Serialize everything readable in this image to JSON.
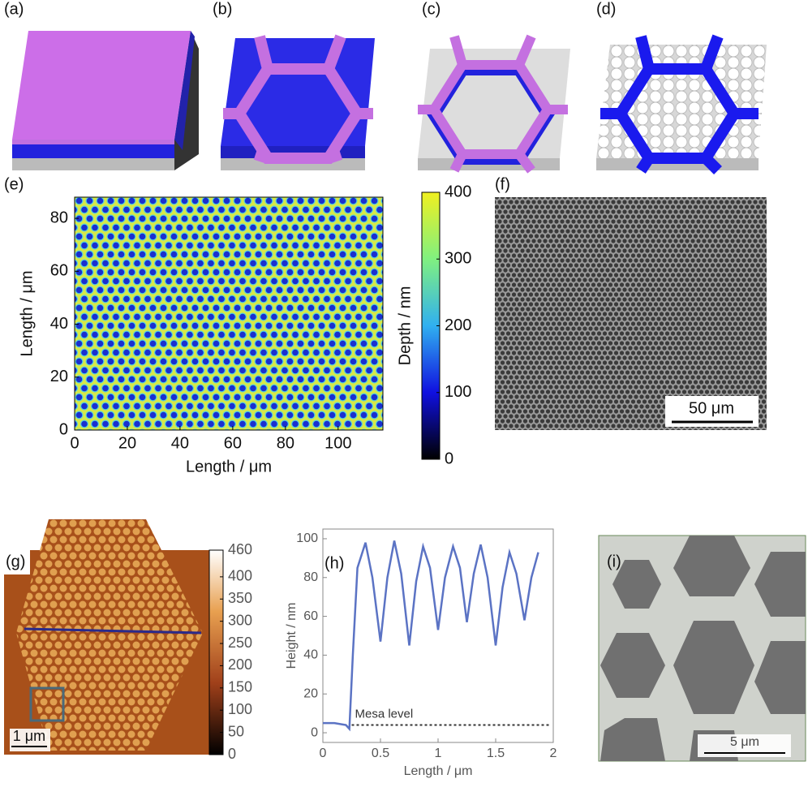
{
  "panel_labels": {
    "a": "(a)",
    "b": "(b)",
    "c": "(c)",
    "d": "(d)",
    "e": "(e)",
    "f": "(f)",
    "g": "(g)",
    "h": "(h)",
    "i": "(i)"
  },
  "scale_bars": {
    "f": "50 μm",
    "g": "1 μm",
    "i": "5 μm"
  },
  "chart_data": [
    {
      "type": "heatmap",
      "xlabel": "Length / μm",
      "ylabel": "Length / μm",
      "xlim": [
        0,
        117
      ],
      "ylim": [
        0,
        88
      ],
      "xticks": [
        0,
        20,
        40,
        60,
        80,
        100
      ],
      "yticks": [
        0,
        20,
        40,
        60,
        80
      ]
    },
    {
      "type": "colorbar",
      "label": "Depth / nm",
      "ylim": [
        0,
        400
      ],
      "yticks": [
        0,
        100,
        200,
        300,
        400
      ]
    },
    {
      "type": "colorbar",
      "ylim": [
        0,
        460
      ],
      "yticks": [
        0,
        50,
        100,
        150,
        200,
        250,
        300,
        350,
        400,
        460
      ]
    },
    {
      "type": "line",
      "xlabel": "Length / μm",
      "ylabel": "Height / nm",
      "xlim": [
        0,
        2
      ],
      "ylim": [
        -5,
        105
      ],
      "xticks": [
        0,
        0.5,
        1,
        1.5,
        2
      ],
      "yticks": [
        0,
        20,
        40,
        60,
        80,
        100
      ],
      "color": "#5b73c4",
      "x": [
        0,
        0.1,
        0.2,
        0.23,
        0.26,
        0.3,
        0.37,
        0.43,
        0.5,
        0.56,
        0.62,
        0.68,
        0.75,
        0.81,
        0.87,
        0.93,
        1.0,
        1.06,
        1.13,
        1.19,
        1.25,
        1.31,
        1.37,
        1.43,
        1.5,
        1.56,
        1.62,
        1.68,
        1.75,
        1.81,
        1.87
      ],
      "values": [
        5,
        5,
        4,
        2,
        40,
        85,
        98,
        80,
        47,
        80,
        99,
        82,
        45,
        78,
        96,
        85,
        53,
        80,
        96,
        85,
        57,
        82,
        97,
        80,
        45,
        75,
        93,
        82,
        58,
        80,
        93
      ],
      "reference_line": {
        "label": "Mesa level",
        "value": 4,
        "start": 0.25
      }
    }
  ]
}
